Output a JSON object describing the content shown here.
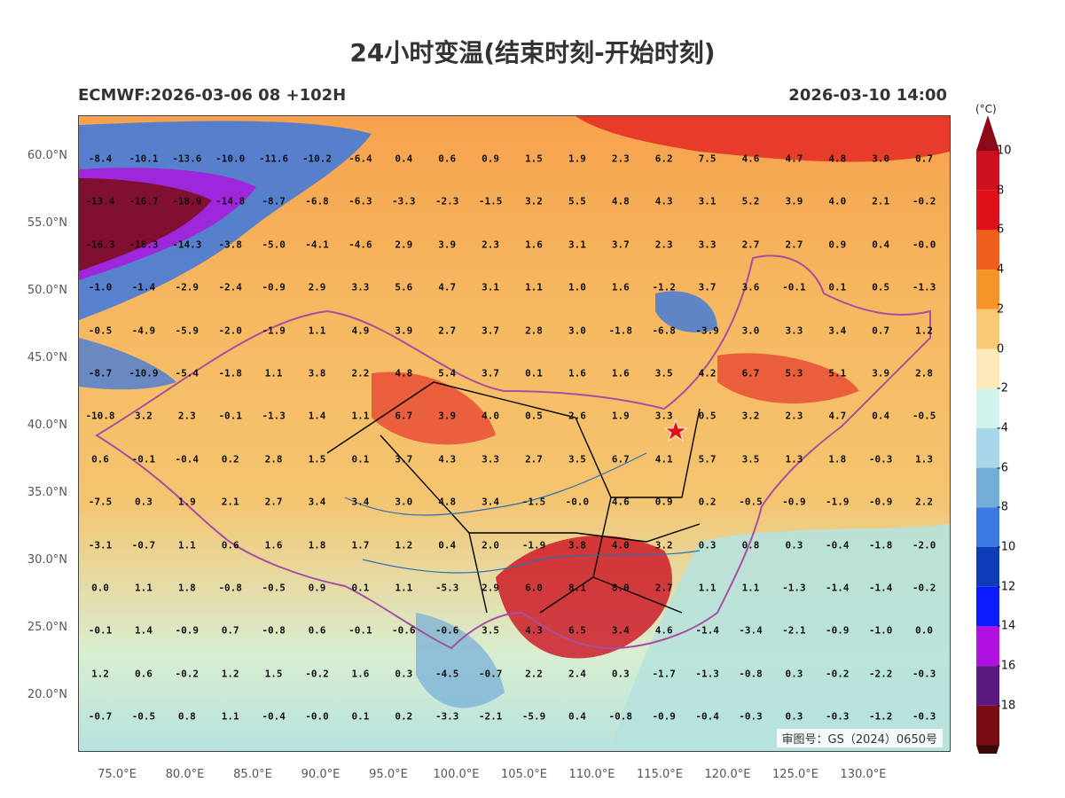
{
  "title": "24小时变温(结束时刻-开始时刻)",
  "subtitle_left": "ECMWF:2026-03-06 08 +102H",
  "subtitle_right": "2026-03-10 14:00",
  "copyright": "审图号：GS（2024）0650号",
  "colorbar": {
    "unit": "(°C)",
    "labels": [
      "10",
      "8",
      "6",
      "4",
      "2",
      "0",
      "-2",
      "-4",
      "-6",
      "-8",
      "-10",
      "-12",
      "-14",
      "-16",
      "-18"
    ],
    "colors": [
      "#cc1020",
      "#e0101a",
      "#f0601c",
      "#f79428",
      "#f8c875",
      "#fde8b8",
      "#d2f2ec",
      "#a8d7ea",
      "#74acd8",
      "#3b78e0",
      "#0d3cb8",
      "#0d1cff",
      "#b010e0",
      "#5a1880",
      "#7a0c14"
    ]
  },
  "axes": {
    "y_labels": [
      "60.0°N",
      "55.0°N",
      "50.0°N",
      "45.0°N",
      "40.0°N",
      "35.0°N",
      "30.0°N",
      "25.0°N",
      "20.0°N"
    ],
    "x_labels": [
      "75.0°E",
      "80.0°E",
      "85.0°E",
      "90.0°E",
      "95.0°E",
      "100.0°E",
      "105.0°E",
      "110.0°E",
      "115.0°E",
      "120.0°E",
      "125.0°E",
      "130.0°E"
    ]
  },
  "grid_values": [
    [
      "-8.4",
      "-10.1",
      "-13.6",
      "-10.0",
      "-11.6",
      "-10.2",
      "-6.4",
      "0.4",
      "0.6",
      "0.9",
      "1.5",
      "1.9",
      "2.3",
      "6.2",
      "7.5",
      "4.6",
      "4.7",
      "4.8",
      "3.0",
      "0.7"
    ],
    [
      "-13.4",
      "-16.7",
      "-18.9",
      "-14.8",
      "-8.7",
      "-6.8",
      "-6.3",
      "-3.3",
      "-2.3",
      "-1.5",
      "3.2",
      "5.5",
      "4.8",
      "4.3",
      "3.1",
      "5.2",
      "3.9",
      "4.0",
      "2.1",
      "-0.2"
    ],
    [
      "-16.3",
      "-18.3",
      "-14.3",
      "-3.8",
      "-5.0",
      "-4.1",
      "-4.6",
      "2.9",
      "3.9",
      "2.3",
      "1.6",
      "3.1",
      "3.7",
      "2.3",
      "3.3",
      "2.7",
      "2.7",
      "0.9",
      "0.4",
      "-0.0"
    ],
    [
      "-1.0",
      "-1.4",
      "-2.9",
      "-2.4",
      "-0.9",
      "2.9",
      "3.3",
      "5.6",
      "4.7",
      "3.1",
      "1.1",
      "1.0",
      "1.6",
      "-1.2",
      "3.7",
      "3.6",
      "-0.1",
      "0.1",
      "0.5",
      "-1.3"
    ],
    [
      "-0.5",
      "-4.9",
      "-5.9",
      "-2.0",
      "-1.9",
      "1.1",
      "4.9",
      "3.9",
      "2.7",
      "3.7",
      "2.8",
      "3.0",
      "-1.8",
      "-6.8",
      "-3.9",
      "3.0",
      "3.3",
      "3.4",
      "0.7",
      "1.2"
    ],
    [
      "-8.7",
      "-10.9",
      "-5.4",
      "-1.8",
      "1.1",
      "3.8",
      "2.2",
      "4.8",
      "5.4",
      "3.7",
      "0.1",
      "1.6",
      "1.6",
      "3.5",
      "4.2",
      "6.7",
      "5.3",
      "5.1",
      "3.9",
      "2.8"
    ],
    [
      "-10.8",
      "3.2",
      "2.3",
      "-0.1",
      "-1.3",
      "1.4",
      "1.1",
      "6.7",
      "3.9",
      "4.0",
      "0.5",
      "2.6",
      "1.9",
      "3.3",
      "0.5",
      "3.2",
      "2.3",
      "4.7",
      "0.4",
      "-0.5"
    ],
    [
      "0.6",
      "-0.1",
      "-0.4",
      "0.2",
      "2.8",
      "1.5",
      "0.1",
      "3.7",
      "4.3",
      "3.3",
      "2.7",
      "3.5",
      "6.7",
      "4.1",
      "5.7",
      "3.5",
      "1.3",
      "1.8",
      "-0.3",
      "1.3"
    ],
    [
      "-7.5",
      "0.3",
      "1.9",
      "2.1",
      "2.7",
      "3.4",
      "3.4",
      "3.0",
      "4.8",
      "3.4",
      "-1.5",
      "-0.0",
      "4.6",
      "0.9",
      "0.2",
      "-0.5",
      "-0.9",
      "-1.9",
      "-0.9",
      "2.2"
    ],
    [
      "-3.1",
      "-0.7",
      "1.1",
      "0.6",
      "1.6",
      "1.8",
      "1.7",
      "1.2",
      "0.4",
      "2.0",
      "-1.9",
      "3.8",
      "4.0",
      "3.2",
      "0.3",
      "0.8",
      "0.3",
      "-0.4",
      "-1.8",
      "-2.0"
    ],
    [
      "0.0",
      "1.1",
      "1.8",
      "-0.8",
      "-0.5",
      "0.9",
      "0.1",
      "1.1",
      "-5.3",
      "2.9",
      "6.0",
      "8.1",
      "8.0",
      "2.7",
      "1.1",
      "1.1",
      "-1.3",
      "-1.4",
      "-1.4",
      "-0.2"
    ],
    [
      "-0.1",
      "1.4",
      "-0.9",
      "0.7",
      "-0.8",
      "0.6",
      "-0.1",
      "-0.6",
      "-0.6",
      "3.5",
      "4.3",
      "6.5",
      "3.4",
      "4.6",
      "-1.4",
      "-3.4",
      "-2.1",
      "-0.9",
      "-1.0",
      "0.0"
    ],
    [
      "1.2",
      "0.6",
      "-0.2",
      "1.2",
      "1.5",
      "-0.2",
      "1.6",
      "0.3",
      "-4.5",
      "-0.7",
      "2.2",
      "2.4",
      "0.3",
      "-1.7",
      "-1.3",
      "-0.8",
      "0.3",
      "-0.2",
      "-2.2",
      "-0.3"
    ],
    [
      "-0.7",
      "-0.5",
      "0.8",
      "1.1",
      "-0.4",
      "-0.0",
      "0.1",
      "0.2",
      "-3.3",
      "-2.1",
      "-5.9",
      "0.4",
      "-0.8",
      "-0.9",
      "-0.4",
      "-0.3",
      "0.3",
      "-0.3",
      "-1.2",
      "-0.3"
    ]
  ]
}
